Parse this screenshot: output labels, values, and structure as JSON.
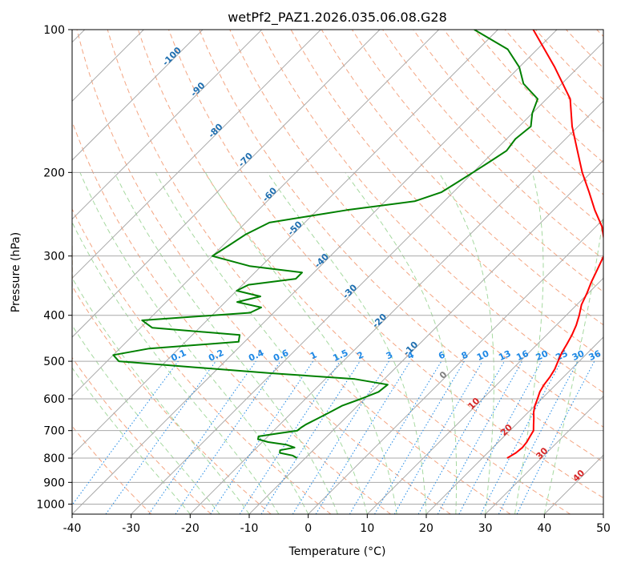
{
  "chart_data": {
    "type": "line",
    "subtype": "skew-t log-p diagram",
    "title": "wetPf2_PAZ1.2026.035.06.08.G28",
    "xlabel": "Temperature (°C)",
    "ylabel": "Pressure (hPa)",
    "xlim": [
      -40,
      50
    ],
    "ylim": [
      1050,
      100
    ],
    "y_scale": "log",
    "x_ticks": [
      -40,
      -30,
      -20,
      -10,
      0,
      10,
      20,
      30,
      40,
      50
    ],
    "y_ticks": [
      100,
      200,
      300,
      400,
      500,
      600,
      700,
      800,
      900,
      1000
    ],
    "grid": true,
    "series": [
      {
        "role": "temperature profile",
        "color": "#ff0000",
        "pressure": [
          800,
          780,
          760,
          740,
          720,
          700,
          680,
          660,
          640,
          620,
          600,
          580,
          560,
          540,
          520,
          500,
          480,
          460,
          440,
          420,
          400,
          380,
          360,
          340,
          320,
          300,
          280,
          260,
          240,
          220,
          200,
          180,
          160,
          140,
          120,
          100
        ],
        "temperature": [
          24.2,
          24.8,
          25.0,
          24.8,
          24.4,
          24.0,
          23.0,
          22.0,
          20.9,
          20.0,
          19.3,
          18.5,
          18.0,
          17.7,
          17.2,
          16.4,
          15.6,
          15.0,
          14.3,
          13.4,
          12.2,
          10.8,
          9.8,
          8.6,
          7.5,
          6.3,
          4.0,
          1.0,
          -3.0,
          -7.0,
          -11.5,
          -16.0,
          -21.0,
          -26.0,
          -34.0,
          -44.0
        ]
      },
      {
        "role": "dewpoint profile",
        "color": "#008000",
        "pressure": [
          800,
          790,
          780,
          770,
          760,
          750,
          740,
          730,
          720,
          710,
          700,
          690,
          680,
          660,
          640,
          620,
          600,
          580,
          560,
          545,
          530,
          515,
          500,
          485,
          470,
          455,
          440,
          425,
          410,
          395,
          385,
          375,
          365,
          355,
          345,
          335,
          325,
          315,
          300,
          285,
          270,
          255,
          240,
          230,
          220,
          210,
          200,
          190,
          180,
          170,
          160,
          150,
          140,
          130,
          120,
          110,
          100
        ],
        "dewpoint": [
          -11.4,
          -12.6,
          -15.2,
          -15.6,
          -13.6,
          -15.4,
          -19.0,
          -21.2,
          -21.6,
          -18.8,
          -16.0,
          -15.9,
          -15.6,
          -14.6,
          -13.6,
          -12.6,
          -10.6,
          -8.8,
          -8.5,
          -15.0,
          -30.0,
          -44.0,
          -58.0,
          -60.0,
          -55.0,
          -41.0,
          -42.0,
          -58.0,
          -61.0,
          -44.0,
          -43.0,
          -48.0,
          -45.0,
          -50.0,
          -49.0,
          -42.0,
          -42.0,
          -52.0,
          -60.0,
          -59.0,
          -58.0,
          -56.0,
          -45.0,
          -35.0,
          -32.0,
          -31.0,
          -30.0,
          -29.0,
          -28.0,
          -28.5,
          -28.0,
          -30.0,
          -31.5,
          -36.5,
          -40.0,
          -45.0,
          -54.0
        ]
      }
    ],
    "isotherm_labels": [
      "-100",
      "-90",
      "-80",
      "-70",
      "-60",
      "-50",
      "-40",
      "-30",
      "-20",
      "-10",
      "0",
      "10",
      "20",
      "30",
      "40"
    ],
    "mixing_ratio_labels": [
      "0.1",
      "0.2",
      "0.4",
      "0.6",
      "1",
      "1.5",
      "2",
      "3",
      "4",
      "6",
      "8",
      "10",
      "13",
      "16",
      "20",
      "25",
      "30",
      "36"
    ],
    "colors": {
      "temperature": "#ff0000",
      "dewpoint": "#008000",
      "isotherm": "#a9a9a9",
      "dry_adiabat": "#f4a582",
      "moist_adiabat": "#a6d9a0",
      "mixing_ratio": "#1e88e5",
      "label_cold": "#1f6fb0",
      "label_warm": "#d62728",
      "label_zero": "#808080",
      "reference": "#d2b48c"
    }
  }
}
